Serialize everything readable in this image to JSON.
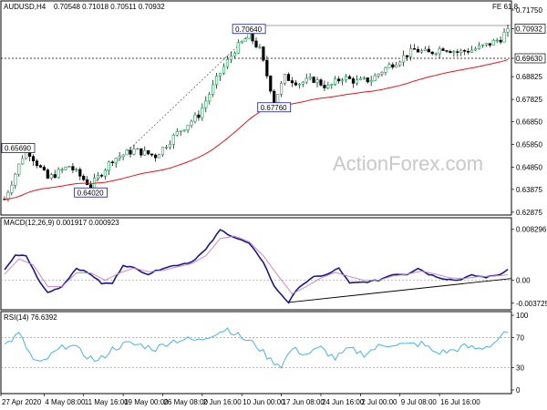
{
  "header": {
    "symbol": "AUDUSD,H4",
    "ohlc": "0.70548 0.71018 0.70511 0.70932",
    "fe_label": "FE 61.8"
  },
  "watermark": "ActionForex.com",
  "colors": {
    "bull": "#0aa64b",
    "bear": "#000000",
    "ma": "#e8141b",
    "macd": "#1a1a8c",
    "signal": "#c87ac8",
    "rsi": "#45b3f0",
    "trend": "#000000",
    "fe_line": "#888888",
    "label_border": "#1a1a8c"
  },
  "chart_data": [
    {
      "type": "candlestick",
      "title": "AUDUSD,H4",
      "ylim": [
        0.6275,
        0.7175
      ],
      "yticks": [
        "0.71750",
        "0.70932",
        "0.69630",
        "0.68825",
        "0.67825",
        "0.66850",
        "0.65850",
        "0.64850",
        "0.63875",
        "0.62875"
      ],
      "tick_values": [
        0.7175,
        0.70932,
        0.6963,
        0.68825,
        0.67825,
        0.6685,
        0.6585,
        0.6485,
        0.63875,
        0.62875
      ],
      "highlight_ticks": [
        "0.70932",
        "0.69630"
      ],
      "last_price": 0.70932,
      "fe_level": 0.7107,
      "dashed_level": 0.6963,
      "moving_average_visible": true,
      "annotations": [
        {
          "text": "0.65690",
          "x": 0,
          "y": 0.6569
        },
        {
          "text": "0.64020",
          "x": 24,
          "y": 0.6402
        },
        {
          "text": "0.70640",
          "x": 68,
          "y": 0.7064
        },
        {
          "text": "0.67760",
          "x": 75,
          "y": 0.6776
        }
      ],
      "key_points": [
        {
          "x": 0,
          "close": 0.6345
        },
        {
          "x": 6,
          "close": 0.6569
        },
        {
          "x": 12,
          "close": 0.6435
        },
        {
          "x": 18,
          "close": 0.649
        },
        {
          "x": 24,
          "close": 0.6402
        },
        {
          "x": 30,
          "close": 0.652
        },
        {
          "x": 36,
          "close": 0.656
        },
        {
          "x": 42,
          "close": 0.6535
        },
        {
          "x": 48,
          "close": 0.6635
        },
        {
          "x": 54,
          "close": 0.6715
        },
        {
          "x": 60,
          "close": 0.69
        },
        {
          "x": 64,
          "close": 0.7
        },
        {
          "x": 68,
          "close": 0.7064
        },
        {
          "x": 71,
          "close": 0.7
        },
        {
          "x": 75,
          "close": 0.6776
        },
        {
          "x": 78,
          "close": 0.688
        },
        {
          "x": 82,
          "close": 0.6855
        },
        {
          "x": 86,
          "close": 0.687
        },
        {
          "x": 90,
          "close": 0.6835
        },
        {
          "x": 94,
          "close": 0.688
        },
        {
          "x": 98,
          "close": 0.686
        },
        {
          "x": 102,
          "close": 0.687
        },
        {
          "x": 106,
          "close": 0.692
        },
        {
          "x": 110,
          "close": 0.696
        },
        {
          "x": 114,
          "close": 0.7
        },
        {
          "x": 118,
          "close": 0.6985
        },
        {
          "x": 122,
          "close": 0.701
        },
        {
          "x": 126,
          "close": 0.699
        },
        {
          "x": 130,
          "close": 0.7
        },
        {
          "x": 134,
          "close": 0.702
        },
        {
          "x": 138,
          "close": 0.705
        },
        {
          "x": 140,
          "close": 0.7093
        }
      ],
      "n_bars": 141
    },
    {
      "type": "line",
      "title": "MACD(12,26,9) 0.001917 0.000923",
      "ylim": [
        -0.0045,
        0.009
      ],
      "yticks": [
        "0.008296",
        "0.00",
        "-0.003725"
      ],
      "tick_values": [
        0.008296,
        0.0,
        -0.003725
      ],
      "series": [
        {
          "name": "MACD",
          "key_points": [
            [
              0,
              0.0018
            ],
            [
              3,
              0.004
            ],
            [
              6,
              0.004
            ],
            [
              10,
              -0.0005
            ],
            [
              12,
              -0.002
            ],
            [
              16,
              -0.001
            ],
            [
              20,
              0.002
            ],
            [
              24,
              0.001
            ],
            [
              27,
              -0.0005
            ],
            [
              30,
              -0.0005
            ],
            [
              33,
              0.0025
            ],
            [
              36,
              0.002
            ],
            [
              40,
              0.001
            ],
            [
              44,
              0.002
            ],
            [
              48,
              0.0025
            ],
            [
              52,
              0.003
            ],
            [
              56,
              0.005
            ],
            [
              60,
              0.0082
            ],
            [
              64,
              0.007
            ],
            [
              68,
              0.006
            ],
            [
              72,
              0.003
            ],
            [
              75,
              -0.001
            ],
            [
              79,
              -0.0036
            ],
            [
              82,
              -0.001
            ],
            [
              86,
              0.0005
            ],
            [
              90,
              0.001
            ],
            [
              93,
              0.002
            ],
            [
              96,
              -0.0005
            ],
            [
              100,
              -0.0003
            ],
            [
              104,
              0.0
            ],
            [
              108,
              0.001
            ],
            [
              112,
              0.001
            ],
            [
              115,
              0.002
            ],
            [
              118,
              0.001
            ],
            [
              122,
              0.0003
            ],
            [
              126,
              0.0
            ],
            [
              130,
              0.0008
            ],
            [
              134,
              0.0005
            ],
            [
              138,
              0.001
            ],
            [
              140,
              0.0019
            ]
          ]
        },
        {
          "name": "Signal",
          "key_points": [
            [
              0,
              0.001
            ],
            [
              4,
              0.0035
            ],
            [
              8,
              0.0025
            ],
            [
              12,
              -0.001
            ],
            [
              16,
              -0.001
            ],
            [
              20,
              0.0012
            ],
            [
              24,
              0.0012
            ],
            [
              28,
              0.0
            ],
            [
              32,
              0.0012
            ],
            [
              36,
              0.002
            ],
            [
              40,
              0.0014
            ],
            [
              44,
              0.0016
            ],
            [
              48,
              0.0022
            ],
            [
              52,
              0.0027
            ],
            [
              56,
              0.004
            ],
            [
              60,
              0.0068
            ],
            [
              64,
              0.0072
            ],
            [
              68,
              0.0063
            ],
            [
              72,
              0.004
            ],
            [
              76,
              0.0008
            ],
            [
              80,
              -0.0022
            ],
            [
              84,
              -0.001
            ],
            [
              88,
              0.0004
            ],
            [
              92,
              0.0013
            ],
            [
              96,
              0.0006
            ],
            [
              100,
              0.0
            ],
            [
              104,
              0.0
            ],
            [
              108,
              0.0007
            ],
            [
              112,
              0.001
            ],
            [
              116,
              0.0015
            ],
            [
              120,
              0.001
            ],
            [
              124,
              0.0004
            ],
            [
              128,
              0.0003
            ],
            [
              132,
              0.0006
            ],
            [
              136,
              0.0007
            ],
            [
              140,
              0.0009
            ]
          ]
        }
      ],
      "trendline": [
        [
          79,
          -0.0036
        ],
        [
          140,
          0.0003
        ]
      ]
    },
    {
      "type": "line",
      "title": "RSI(14) 76.6392",
      "ylim": [
        0,
        100
      ],
      "yticks": [
        "100",
        "70",
        "30",
        "0"
      ],
      "tick_values": [
        100,
        70,
        30,
        0
      ],
      "levels": [
        70,
        30
      ],
      "series": [
        {
          "name": "RSI",
          "key_points": [
            [
              0,
              60
            ],
            [
              4,
              75
            ],
            [
              8,
              40
            ],
            [
              10,
              35
            ],
            [
              14,
              50
            ],
            [
              18,
              62
            ],
            [
              22,
              48
            ],
            [
              26,
              38
            ],
            [
              30,
              55
            ],
            [
              34,
              62
            ],
            [
              38,
              60
            ],
            [
              42,
              55
            ],
            [
              46,
              65
            ],
            [
              50,
              68
            ],
            [
              54,
              66
            ],
            [
              58,
              75
            ],
            [
              62,
              82
            ],
            [
              66,
              70
            ],
            [
              70,
              60
            ],
            [
              74,
              40
            ],
            [
              77,
              33
            ],
            [
              80,
              55
            ],
            [
              84,
              48
            ],
            [
              88,
              56
            ],
            [
              92,
              42
            ],
            [
              96,
              55
            ],
            [
              100,
              48
            ],
            [
              104,
              58
            ],
            [
              108,
              62
            ],
            [
              112,
              60
            ],
            [
              116,
              62
            ],
            [
              120,
              50
            ],
            [
              124,
              52
            ],
            [
              128,
              58
            ],
            [
              132,
              55
            ],
            [
              136,
              62
            ],
            [
              138,
              72
            ],
            [
              140,
              76.64
            ]
          ]
        }
      ],
      "x_ticks": [
        {
          "label": "27 Apr 2020",
          "x": 0
        },
        {
          "label": "4 May 08:00",
          "x": 11
        },
        {
          "label": "11 May 16:00",
          "x": 22
        },
        {
          "label": "19 May 00:00",
          "x": 33
        },
        {
          "label": "26 May 08:00",
          "x": 44
        },
        {
          "label": "2 Jun 16:00",
          "x": 55
        },
        {
          "label": "10 Jun 00:00",
          "x": 66
        },
        {
          "label": "17 Jun 08:00",
          "x": 77
        },
        {
          "label": "24 Jun 16:00",
          "x": 88
        },
        {
          "label": "2 Jul 00:00",
          "x": 99
        },
        {
          "label": "9 Jul 08:00",
          "x": 110
        },
        {
          "label": "16 Jul 16:00",
          "x": 121
        }
      ]
    }
  ]
}
